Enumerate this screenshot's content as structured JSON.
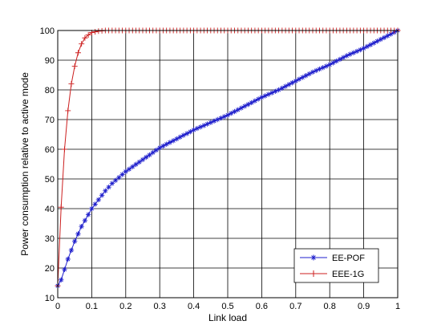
{
  "chart_data": {
    "type": "line",
    "title": "",
    "xlabel": "Link load",
    "ylabel": "Power consumption relative to active mode",
    "xlim": [
      0,
      1
    ],
    "ylim": [
      10,
      100
    ],
    "xticks": [
      "0",
      "0.1",
      "0.2",
      "0.3",
      "0.4",
      "0.5",
      "0.6",
      "0.7",
      "0.8",
      "0.9",
      "1"
    ],
    "yticks": [
      "10",
      "20",
      "30",
      "40",
      "50",
      "60",
      "70",
      "80",
      "90",
      "100"
    ],
    "grid": true,
    "legend_position": "bottom-right",
    "x": [
      0,
      0.01,
      0.02,
      0.03,
      0.04,
      0.05,
      0.06,
      0.07,
      0.08,
      0.09,
      0.1,
      0.12,
      0.14,
      0.16,
      0.18,
      0.2,
      0.25,
      0.3,
      0.35,
      0.4,
      0.45,
      0.5,
      0.55,
      0.6,
      0.65,
      0.7,
      0.75,
      0.8,
      0.85,
      0.9,
      0.95,
      1.0
    ],
    "series": [
      {
        "name": "EE-POF",
        "color": "#1f1fcc",
        "marker": "star",
        "values": [
          14,
          16,
          19.5,
          23,
          26,
          29,
          31.5,
          34,
          36,
          38,
          40,
          43,
          46,
          48.5,
          50.5,
          52.5,
          56.5,
          60.5,
          63.5,
          66.5,
          69,
          71.5,
          74.5,
          77.5,
          80,
          83,
          86,
          88.5,
          91.5,
          94,
          97,
          100
        ]
      },
      {
        "name": "EEE-1G",
        "color": "#cc1f1f",
        "marker": "plus",
        "values": [
          14,
          40.5,
          60,
          73,
          82,
          88,
          92.5,
          95.5,
          97.5,
          98.5,
          99.3,
          99.8,
          100,
          100,
          100,
          100,
          100,
          100,
          100,
          100,
          100,
          100,
          100,
          100,
          100,
          100,
          100,
          100,
          100,
          100,
          100,
          100
        ]
      }
    ]
  }
}
